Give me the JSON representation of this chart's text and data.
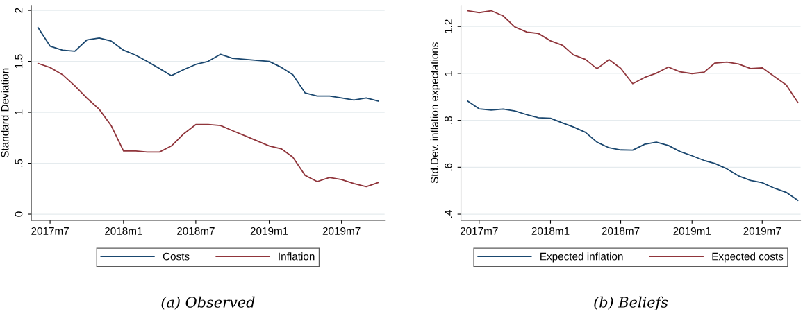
{
  "chart_data": [
    {
      "type": "line",
      "title": "(a) Observed",
      "ylabel": "Standard Deviation",
      "x": [
        "2017-06",
        "2017-07",
        "2017-08",
        "2017-09",
        "2017-10",
        "2017-11",
        "2017-12",
        "2018-01",
        "2018-02",
        "2018-03",
        "2018-04",
        "2018-05",
        "2018-06",
        "2018-07",
        "2018-08",
        "2018-09",
        "2018-10",
        "2018-11",
        "2018-12",
        "2019-01",
        "2019-02",
        "2019-03",
        "2019-04",
        "2019-05",
        "2019-06",
        "2019-07",
        "2019-08",
        "2019-09",
        "2019-10"
      ],
      "series": [
        {
          "name": "Costs",
          "color": "#1a476f",
          "values": [
            1.83,
            1.65,
            1.61,
            1.6,
            1.71,
            1.73,
            1.7,
            1.61,
            1.56,
            1.5,
            1.43,
            1.36,
            1.42,
            1.47,
            1.5,
            1.57,
            1.53,
            1.52,
            1.51,
            1.5,
            1.44,
            1.37,
            1.19,
            1.16,
            1.16,
            1.14,
            1.12,
            1.14,
            1.11
          ]
        },
        {
          "name": "Inflation",
          "color": "#90353b",
          "values": [
            1.48,
            1.44,
            1.37,
            1.26,
            1.14,
            1.03,
            0.87,
            0.62,
            0.62,
            0.61,
            0.61,
            0.67,
            0.79,
            0.88,
            0.88,
            0.87,
            0.82,
            0.77,
            0.72,
            0.67,
            0.64,
            0.56,
            0.38,
            0.32,
            0.36,
            0.34,
            0.3,
            0.27,
            0.31
          ]
        }
      ],
      "xlim": [
        "2017-05-15",
        "2019-10-17"
      ],
      "xticks": [
        {
          "value": "2017-07",
          "label": "2017m7"
        },
        {
          "value": "2018-01",
          "label": "2018m1"
        },
        {
          "value": "2018-07",
          "label": "2018m7"
        },
        {
          "value": "2019-01",
          "label": "2019m1"
        },
        {
          "value": "2019-07",
          "label": "2019m7"
        }
      ],
      "ylim": [
        -0.06,
        2.05
      ],
      "yticks": [
        0,
        {
          "value": 0.5,
          "label": ".5"
        },
        1,
        {
          "value": 1.5,
          "label": "1.5"
        },
        2
      ],
      "grid": "y",
      "legend": "bottom",
      "line_style": "solid",
      "marker": "none"
    },
    {
      "type": "line",
      "title": "(b) Beliefs",
      "ylabel": "Std.Dev. inflation expectations",
      "x": [
        "2017-06",
        "2017-07",
        "2017-08",
        "2017-09",
        "2017-10",
        "2017-11",
        "2017-12",
        "2018-01",
        "2018-02",
        "2018-03",
        "2018-04",
        "2018-05",
        "2018-06",
        "2018-07",
        "2018-08",
        "2018-09",
        "2018-10",
        "2018-11",
        "2018-12",
        "2019-01",
        "2019-02",
        "2019-03",
        "2019-04",
        "2019-05",
        "2019-06",
        "2019-07",
        "2019-08",
        "2019-09",
        "2019-10"
      ],
      "series": [
        {
          "name": "Expected inflation",
          "color": "#1a476f",
          "values": [
            0.882,
            0.849,
            0.844,
            0.848,
            0.84,
            0.824,
            0.811,
            0.809,
            0.789,
            0.772,
            0.749,
            0.707,
            0.683,
            0.674,
            0.673,
            0.698,
            0.707,
            0.693,
            0.667,
            0.649,
            0.629,
            0.616,
            0.593,
            0.563,
            0.544,
            0.534,
            0.511,
            0.493,
            0.459
          ]
        },
        {
          "name": "Expected costs",
          "color": "#90353b",
          "values": [
            1.267,
            1.259,
            1.267,
            1.245,
            1.198,
            1.176,
            1.17,
            1.139,
            1.12,
            1.079,
            1.06,
            1.02,
            1.059,
            1.022,
            0.956,
            0.983,
            1.001,
            1.027,
            1.007,
            0.999,
            1.005,
            1.044,
            1.048,
            1.04,
            1.021,
            1.024,
            0.987,
            0.951,
            0.876
          ]
        }
      ],
      "xlim": [
        "2017-05-15",
        "2019-10-08"
      ],
      "xticks": [
        {
          "value": "2017-07",
          "label": "2017m7"
        },
        {
          "value": "2018-01",
          "label": "2018m1"
        },
        {
          "value": "2018-07",
          "label": "2018m7"
        },
        {
          "value": "2019-01",
          "label": "2019m1"
        },
        {
          "value": "2019-07",
          "label": "2019m7"
        }
      ],
      "ylim": [
        0.374,
        1.29
      ],
      "yticks": [
        {
          "value": 0.4,
          "label": ".4"
        },
        {
          "value": 0.6,
          "label": ".6"
        },
        {
          "value": 0.8,
          "label": ".8"
        },
        1,
        {
          "value": 1.2,
          "label": "1.2"
        }
      ],
      "grid": "y",
      "legend": "bottom",
      "line_style": "solid",
      "marker": "none"
    }
  ]
}
